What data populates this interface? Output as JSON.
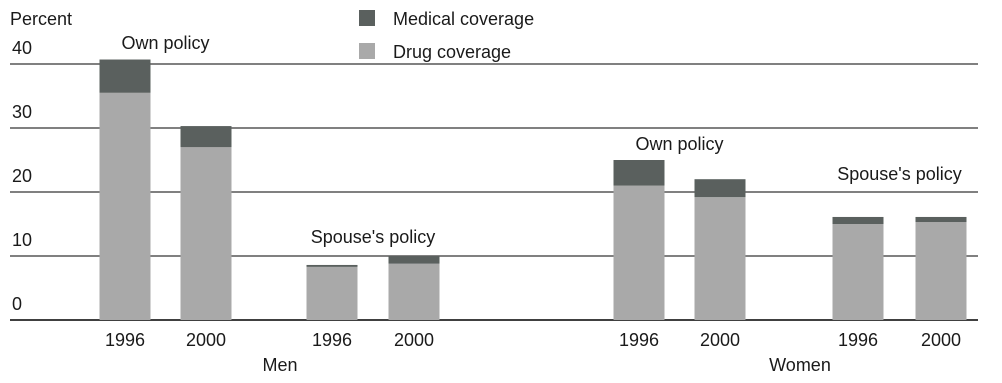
{
  "chart_data": {
    "type": "bar",
    "stacked": true,
    "ylabel": "Percent",
    "ylim": [
      0,
      40
    ],
    "yticks": [
      0,
      10,
      20,
      30,
      40
    ],
    "grid": true,
    "legend_placement": "top-center",
    "series": [
      {
        "name": "Drug coverage",
        "color": "#a9a9a9",
        "values": [
          35.5,
          27,
          8.3,
          8.8,
          21,
          19.2,
          15,
          15.3
        ]
      },
      {
        "name": "Medical coverage",
        "color": "#5a605e",
        "values": [
          5.2,
          3.3,
          0.3,
          1.2,
          4.0,
          2.8,
          1.1,
          0.8
        ]
      }
    ],
    "categories": [
      "1996",
      "2000",
      "1996",
      "2000",
      "1996",
      "2000",
      "1996",
      "2000"
    ],
    "subgroups": [
      {
        "label": "Own policy",
        "bars": [
          0,
          1
        ]
      },
      {
        "label": "Spouse's policy",
        "bars": [
          2,
          3
        ]
      },
      {
        "label": "Own policy",
        "bars": [
          4,
          5
        ]
      },
      {
        "label": "Spouse's policy",
        "bars": [
          6,
          7
        ]
      }
    ],
    "groups": [
      {
        "label": "Men",
        "bars": [
          0,
          1,
          2,
          3
        ]
      },
      {
        "label": "Women",
        "bars": [
          4,
          5,
          6,
          7
        ]
      }
    ]
  }
}
